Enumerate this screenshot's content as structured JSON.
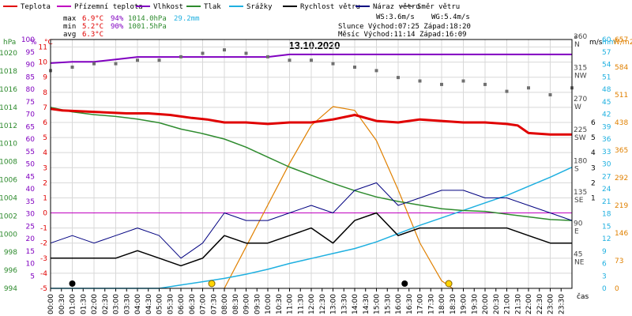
{
  "chart_data": {
    "type": "line",
    "title": "13.10.2020",
    "legend": [
      {
        "name": "Teplota",
        "color": "#e00000"
      },
      {
        "name": "Přízemní teplota",
        "color": "#c000c0"
      },
      {
        "name": "Vlhkost",
        "color": "#8000c0"
      },
      {
        "name": "Tlak",
        "color": "#2e8b2e"
      },
      {
        "name": "Srážky",
        "color": "#1fb0e0"
      },
      {
        "name": "Rychlost větru",
        "color": "#000000"
      },
      {
        "name": "Náraz větru",
        "color": "#000080"
      },
      {
        "name": "Směr větru",
        "color": "#707070"
      }
    ],
    "stats": {
      "max": {
        "label": "max",
        "temp": "6.9°C",
        "hum": "94%",
        "press": "1014.0hPa",
        "rain": "29.2mm"
      },
      "min": {
        "label": "min",
        "temp": "5.2°C",
        "hum": "90%",
        "press": "1001.5hPa"
      },
      "avg": {
        "label": "avg",
        "temp": "6.3°C"
      },
      "ws": "WS:3.6m/s",
      "wg": "WG:5.4m/s",
      "sun": "Slunce Východ:07:25  Západ:18:20",
      "moon": "Měsíc  Východ:11:14  Západ:16:09"
    },
    "axes": {
      "hpa_unit": "hPa",
      "pct_unit": "%",
      "degc_unit": "°C",
      "dir_unit": "°",
      "ms_unit": "m/s",
      "mm_unit": "mm",
      "w_unit": "W/m2",
      "x_label": "čas",
      "hpa_ticks": [
        "1020",
        "1018",
        "1016",
        "1014",
        "1012",
        "1010",
        "1008",
        "1006",
        "1004",
        "1002",
        "1000",
        "998",
        "996",
        "994"
      ],
      "pct_ticks": [
        "100",
        "95",
        "90",
        "85",
        "80",
        "75",
        "70",
        "65",
        "60",
        "55",
        "50",
        "45",
        "40",
        "35",
        "30",
        "25",
        "20",
        "15",
        "10",
        "5"
      ],
      "degc_ticks": [
        "11",
        "10",
        "9",
        "8",
        "7",
        "6",
        "5",
        "4",
        "3",
        "2",
        "1",
        "0",
        "-1",
        "-2",
        "-3",
        "-4",
        "-5"
      ],
      "dir_ticks": [
        {
          "deg": "360",
          "c": "N"
        },
        {
          "deg": "315",
          "c": "NW"
        },
        {
          "deg": "270",
          "c": "W"
        },
        {
          "deg": "225",
          "c": "SW"
        },
        {
          "deg": "180",
          "c": "S"
        },
        {
          "deg": "135",
          "c": "SE"
        },
        {
          "deg": "90",
          "c": "E"
        },
        {
          "deg": "45",
          "c": "NE"
        }
      ],
      "ms_ticks": [
        "6",
        "5",
        "4",
        "3",
        "2",
        "1"
      ],
      "mm_ticks": [
        "60",
        "57",
        "54",
        "51",
        "48",
        "45",
        "42",
        "39",
        "36",
        "33",
        "30",
        "27",
        "24",
        "21",
        "18",
        "15",
        "12",
        "9",
        "6",
        "3",
        "0"
      ],
      "w_ticks": [
        "657",
        "584",
        "511",
        "438",
        "365",
        "292",
        "219",
        "146",
        "73",
        "0"
      ],
      "time_ticks": [
        "00:00",
        "00:30",
        "01:00",
        "01:30",
        "02:00",
        "02:30",
        "03:00",
        "03:30",
        "04:00",
        "04:30",
        "05:00",
        "05:30",
        "06:00",
        "06:30",
        "07:00",
        "07:30",
        "08:00",
        "08:30",
        "09:00",
        "09:30",
        "10:00",
        "10:30",
        "11:00",
        "11:30",
        "12:00",
        "12:30",
        "13:00",
        "13:30",
        "14:00",
        "14:30",
        "15:00",
        "15:30",
        "16:00",
        "16:30",
        "17:00",
        "17:30",
        "18:00",
        "18:30",
        "19:00",
        "19:30",
        "20:00",
        "20:30",
        "21:00",
        "21:30",
        "22:00",
        "22:30",
        "23:00",
        "23:30"
      ]
    },
    "ranges": {
      "temp_c": [
        -5,
        11.5
      ],
      "pressure_hpa": [
        994,
        1021.5
      ],
      "humidity_pct": [
        0,
        100
      ],
      "rain_mm": [
        0,
        60
      ],
      "wind_ms": [
        -5,
        11.5
      ],
      "wind_dir_deg": [
        0,
        360
      ],
      "solar_wm2": [
        0,
        657
      ]
    },
    "series": {
      "temperature": {
        "x_h": [
          0,
          0.5,
          2,
          3.5,
          4.5,
          5.5,
          6.5,
          7.2,
          8,
          9,
          10,
          11,
          12,
          13,
          14,
          15,
          16,
          17,
          18,
          19,
          20,
          21,
          21.5,
          22,
          23,
          24
        ],
        "y": [
          6.9,
          6.8,
          6.7,
          6.6,
          6.6,
          6.5,
          6.3,
          6.2,
          6.0,
          6.0,
          5.9,
          6.0,
          6.0,
          6.2,
          6.5,
          6.1,
          6.0,
          6.2,
          6.1,
          6.0,
          6.0,
          5.9,
          5.8,
          5.3,
          5.2,
          5.2
        ]
      },
      "dew_point": {
        "x_h": [
          0,
          24
        ],
        "y": [
          0.1,
          0.1
        ]
      },
      "humidity": {
        "x_h": [
          0,
          1,
          2,
          3,
          4,
          5,
          6,
          7,
          8,
          9,
          10,
          11,
          12,
          13,
          14,
          15,
          16,
          17,
          18,
          19,
          20,
          21,
          22,
          23,
          24
        ],
        "y": [
          90.5,
          91,
          91,
          92,
          93,
          93,
          93,
          93,
          93,
          93,
          93,
          94,
          94,
          94,
          94,
          94,
          94,
          94,
          94,
          94,
          94,
          94,
          94,
          94,
          94
        ]
      },
      "pressure": {
        "x_h": [
          0,
          1,
          2,
          3,
          4,
          5,
          6,
          7,
          8,
          9,
          10,
          11,
          12,
          13,
          14,
          15,
          16,
          17,
          18,
          19,
          20,
          21,
          22,
          23,
          24
        ],
        "y": [
          1014.0,
          1013.5,
          1013.2,
          1013.0,
          1012.7,
          1012.3,
          1011.6,
          1011.1,
          1010.5,
          1009.6,
          1008.5,
          1007.4,
          1006.5,
          1005.6,
          1004.8,
          1004.1,
          1003.6,
          1003.2,
          1002.8,
          1002.6,
          1002.5,
          1002.2,
          1001.9,
          1001.6,
          1001.5
        ]
      },
      "rain": {
        "x_h": [
          0,
          5,
          6,
          7,
          8,
          9,
          10,
          11,
          12,
          13,
          14,
          15,
          16,
          17,
          18,
          19,
          20,
          21,
          22,
          23,
          24
        ],
        "y": [
          0,
          0,
          0.8,
          1.6,
          2.4,
          3.4,
          4.6,
          6.0,
          7.2,
          8.4,
          9.6,
          11.2,
          13.2,
          15.2,
          17.0,
          18.8,
          20.6,
          22.4,
          24.6,
          26.8,
          29.2
        ]
      },
      "solar": {
        "x_h": [
          8,
          9,
          10,
          11,
          12,
          13,
          14,
          15,
          16,
          17,
          18,
          18.5
        ],
        "y": [
          0,
          110,
          220,
          330,
          430,
          480,
          470,
          390,
          260,
          120,
          20,
          0
        ]
      },
      "wind_speed": {
        "x_h": [
          0,
          1,
          2,
          3,
          4,
          5,
          6,
          7,
          8,
          9,
          10,
          11,
          12,
          13,
          14,
          15,
          16,
          17,
          18,
          19,
          20,
          21,
          22,
          23,
          24
        ],
        "y": [
          -3,
          -3,
          -3,
          -3,
          -2.5,
          -3,
          -3.5,
          -3,
          -1.5,
          -2,
          -2,
          -1.5,
          -1,
          -2,
          -0.5,
          0,
          -1.5,
          -1,
          -1,
          -1,
          -1,
          -1,
          -1.5,
          -2,
          -2
        ]
      },
      "wind_gust": {
        "x_h": [
          0,
          1,
          2,
          3,
          4,
          5,
          6,
          7,
          8,
          9,
          10,
          11,
          12,
          13,
          14,
          15,
          16,
          17,
          18,
          19,
          20,
          21,
          22,
          23,
          24
        ],
        "y": [
          -2,
          -1.5,
          -2,
          -1.5,
          -1,
          -1.5,
          -3,
          -2,
          0,
          -0.5,
          -0.5,
          0,
          0.5,
          0,
          1.5,
          2,
          0.5,
          1,
          1.5,
          1.5,
          1,
          1,
          0.5,
          0,
          -0.5
        ]
      },
      "wind_direction_deg": {
        "x_h": [
          0,
          1,
          2,
          3,
          4,
          5,
          6,
          7,
          8,
          9,
          10,
          11,
          12,
          13,
          14,
          15,
          16,
          17,
          18,
          19,
          20,
          21,
          22,
          23,
          24
        ],
        "y": [
          315,
          320,
          325,
          325,
          330,
          330,
          335,
          340,
          345,
          340,
          335,
          330,
          330,
          325,
          320,
          315,
          305,
          300,
          295,
          300,
          295,
          285,
          290,
          280,
          290
        ]
      }
    },
    "markers": {
      "sunrise_h": 7.42,
      "sunset_h": 18.33,
      "moonrise_h": 11.23,
      "moonset_h": 16.15,
      "moon_dots_h": [
        1.0,
        16.3
      ]
    }
  }
}
